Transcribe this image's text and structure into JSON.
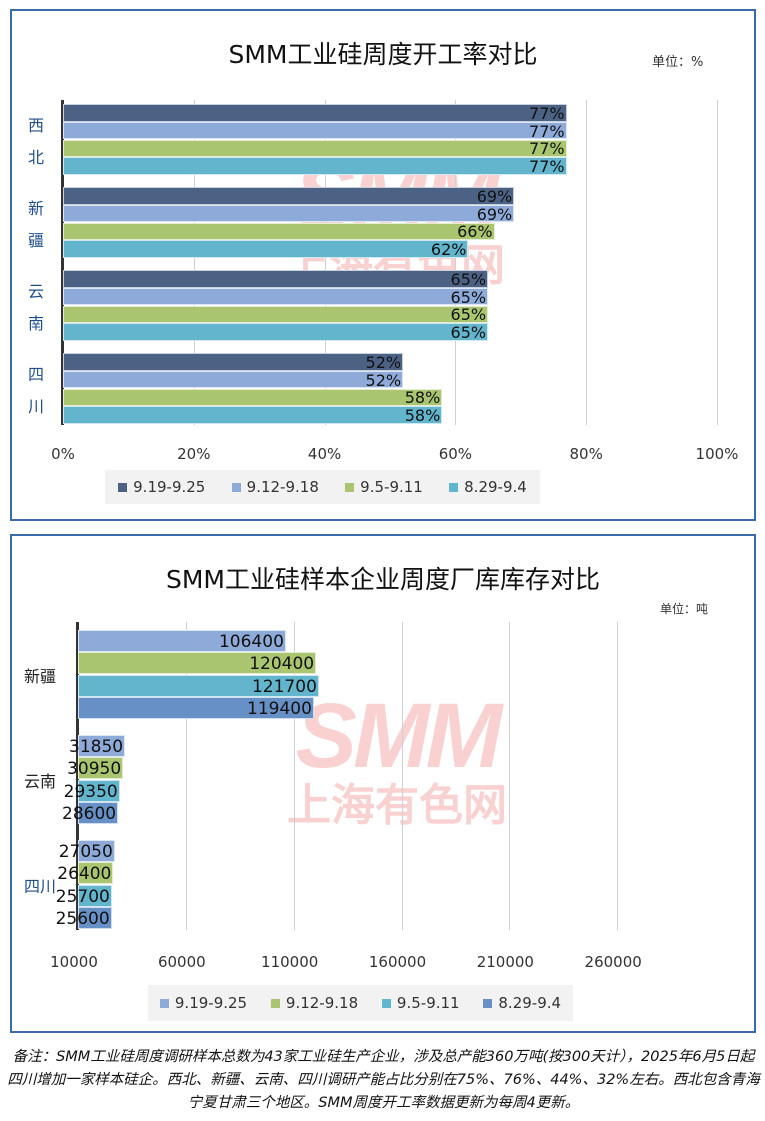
{
  "chart_data": [
    {
      "type": "bar",
      "orientation": "horizontal",
      "title": "SMM工业硅周度开工率对比",
      "unit": "单位：%",
      "categories": [
        "西北",
        "新疆",
        "云南",
        "四川"
      ],
      "series": [
        {
          "name": "9.19-9.25",
          "color": "#4c6285",
          "values": [
            77,
            69,
            65,
            52
          ]
        },
        {
          "name": "9.12-9.18",
          "color": "#8eaad9",
          "values": [
            77,
            69,
            65,
            52
          ]
        },
        {
          "name": "9.5-9.11",
          "color": "#a9c56f",
          "values": [
            77,
            66,
            65,
            58
          ]
        },
        {
          "name": "8.29-9.4",
          "color": "#62b5cc",
          "values": [
            77,
            62,
            65,
            58
          ]
        }
      ],
      "value_suffix": "%",
      "xlim": [
        0,
        100
      ],
      "xticks": [
        "0%",
        "20%",
        "40%",
        "60%",
        "80%",
        "100%"
      ],
      "legend": "bottom",
      "grid": true
    },
    {
      "type": "bar",
      "orientation": "horizontal",
      "title": "SMM工业硅样本企业周度厂库库存对比",
      "unit": "单位：吨",
      "categories": [
        "新疆",
        "云南",
        "四川"
      ],
      "series": [
        {
          "name": "9.19-9.25",
          "color": "#8eaad9",
          "values": [
            106400,
            31850,
            27050
          ]
        },
        {
          "name": "9.12-9.18",
          "color": "#a9c56f",
          "values": [
            120400,
            30950,
            26400
          ]
        },
        {
          "name": "9.5-9.11",
          "color": "#62b5cc",
          "values": [
            121700,
            29350,
            25700
          ]
        },
        {
          "name": "8.29-9.4",
          "color": "#6790c7",
          "values": [
            119400,
            28600,
            25600
          ]
        }
      ],
      "value_suffix": "",
      "xlim": [
        10000,
        310000
      ],
      "xticks": [
        "10000",
        "60000",
        "110000",
        "160000",
        "210000",
        "260000"
      ],
      "legend": "bottom",
      "grid": true
    }
  ],
  "watermark": {
    "logo": "SMM",
    "name": "上海有色网"
  },
  "note": "备注：SMM工业硅周度调研样本总数为43家工业硅生产企业，涉及总产能360万吨(按300天计），2025年6月5日起四川增加一家样本硅企。西北、新疆、云南、四川调研产能占比分别在75%、76%、44%、32%左右。西北包含青海宁夏甘肃三个地区。SMM周度开工率数据更新为每周4更新。"
}
